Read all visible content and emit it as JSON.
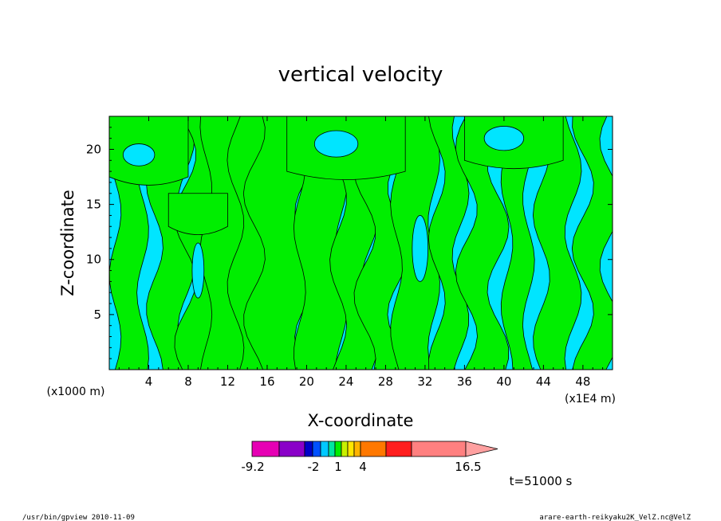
{
  "chart_data": {
    "type": "heatmap",
    "title": "vertical velocity",
    "xlabel": "X-coordinate",
    "ylabel": "Z-coordinate",
    "x_unit_label": "(x1000 m)",
    "x_range_note": "(x1E4 m)",
    "xlim": [
      0,
      51
    ],
    "ylim": [
      0,
      23
    ],
    "xticks": [
      "4",
      "8",
      "12",
      "16",
      "20",
      "24",
      "28",
      "32",
      "36",
      "40",
      "44",
      "48"
    ],
    "yticks": [
      "5",
      "10",
      "15",
      "20"
    ],
    "fill_colors": {
      "negative": "#00e5ff",
      "positive": "#00ee00"
    },
    "colorbar": {
      "colors": [
        "#e600b4",
        "#8a00c8",
        "#0000c8",
        "#0050ff",
        "#00c8ff",
        "#00e6a0",
        "#00ee00",
        "#c8f000",
        "#ffe600",
        "#ffb400",
        "#ff7800",
        "#ff1e1e",
        "#ff8080",
        "#ffa0a0"
      ],
      "labels": [
        "-9.2",
        "-2",
        "1",
        "4",
        "16.5"
      ]
    },
    "time_label": "t=51000 s"
  },
  "footer": {
    "left": "/usr/bin/gpview  2010-11-09",
    "right": "arare-earth-reikyaku2K_VelZ.nc@VelZ"
  }
}
